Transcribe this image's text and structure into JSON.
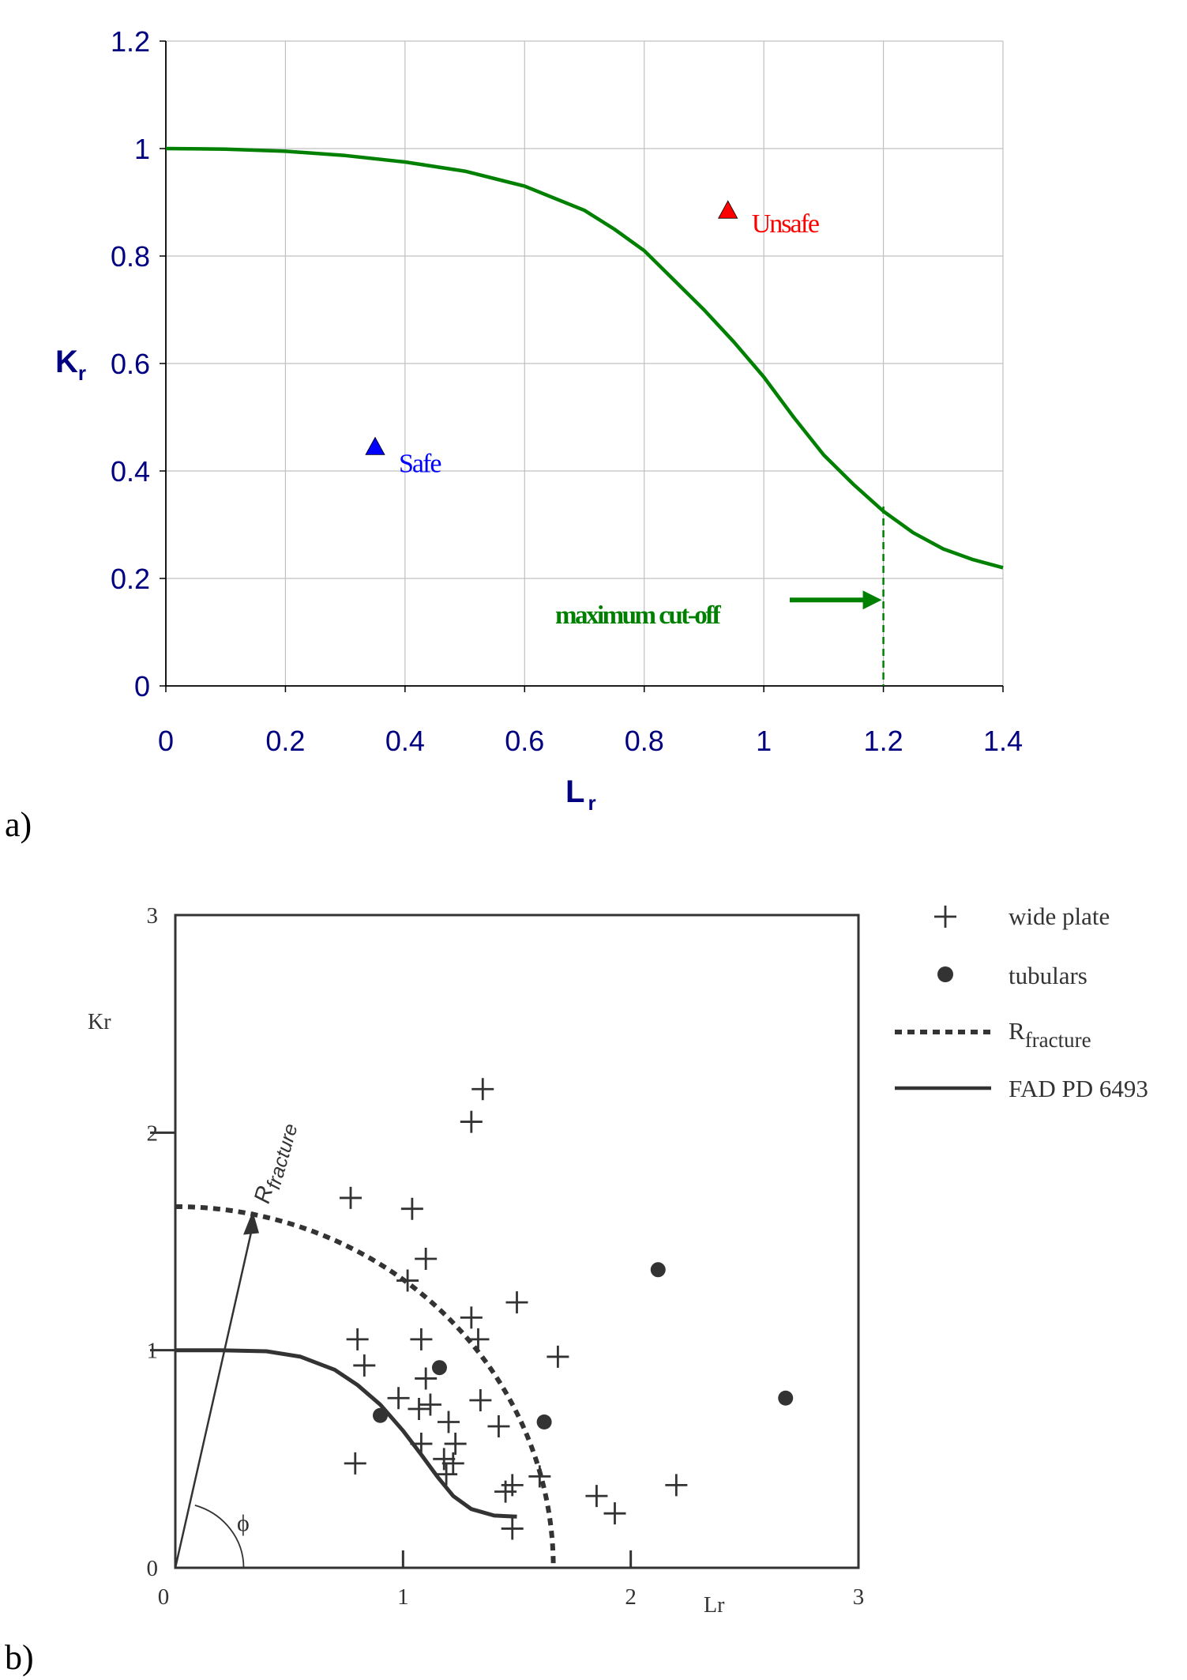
{
  "panels": {
    "a_label": "a)",
    "b_label": "b)"
  },
  "colors": {
    "a_axis_text": "#000080",
    "a_curve": "#008000",
    "a_grid": "#c0c0c0",
    "a_safe": "#0000ff",
    "a_unsafe": "#ff0000",
    "b_ink": "#333333"
  },
  "chart_data": [
    {
      "type": "line",
      "panel": "a",
      "xlabel": "Lr",
      "xlabel_main": "L",
      "xlabel_sub": "r",
      "ylabel": "Kr",
      "ylabel_main": "K",
      "ylabel_sub": "r",
      "xlim": [
        0,
        1.4
      ],
      "ylim": [
        0,
        1.2
      ],
      "xticks": [
        0,
        0.2,
        0.4,
        0.6,
        0.8,
        1,
        1.2,
        1.4
      ],
      "xtick_labels": [
        "0",
        "0.2",
        "0.4",
        "0.6",
        "0.8",
        "1",
        "1.2",
        "1.4"
      ],
      "yticks": [
        0,
        0.2,
        0.4,
        0.6,
        0.8,
        1,
        1.2
      ],
      "ytick_labels": [
        "0",
        "0.2",
        "0.4",
        "0.6",
        "0.8",
        "1",
        "1.2"
      ],
      "grid": true,
      "series": [
        {
          "x": [
            0,
            0.1,
            0.2,
            0.3,
            0.4,
            0.5,
            0.6,
            0.7,
            0.75,
            0.8,
            0.85,
            0.9,
            0.95,
            1.0,
            1.05,
            1.1,
            1.15,
            1.2,
            1.25,
            1.3,
            1.35,
            1.4
          ],
          "y": [
            1.0,
            0.999,
            0.995,
            0.987,
            0.975,
            0.958,
            0.93,
            0.885,
            0.85,
            0.81,
            0.755,
            0.7,
            0.64,
            0.575,
            0.5,
            0.43,
            0.375,
            0.325,
            0.285,
            0.255,
            0.235,
            0.22
          ]
        }
      ],
      "points": [
        {
          "x": 0.35,
          "y": 0.445,
          "label": "Safe",
          "color": "#0000ff",
          "marker": "triangle"
        },
        {
          "x": 0.94,
          "y": 0.885,
          "label": "Unsafe",
          "color": "#ff0000",
          "marker": "triangle"
        }
      ],
      "cutoff": {
        "x": 1.2,
        "y": 0.325,
        "arrow_y": 0.16,
        "label": "maximum cut-off"
      }
    },
    {
      "type": "scatter",
      "panel": "b",
      "xlabel": "Lr",
      "ylabel": "Kr",
      "xlim": [
        0,
        3
      ],
      "ylim": [
        0,
        3
      ],
      "xticks": [
        0,
        1,
        2,
        3
      ],
      "xtick_labels": [
        "0",
        "1",
        "2",
        "3"
      ],
      "yticks": [
        0,
        1,
        2,
        3
      ],
      "ytick_labels": [
        "0",
        "1",
        "2",
        "3"
      ],
      "legend": {
        "wide_plate": "wide plate",
        "tubulars": "tubulars",
        "rfracture_main": "R",
        "rfracture_sub": "fracture",
        "fad": "FAD PD 6493"
      },
      "rfracture_arrow_main": "R",
      "rfracture_arrow_sub": "fracture",
      "phi_label": "ϕ",
      "wide_plate": [
        [
          0.77,
          1.7
        ],
        [
          1.04,
          1.65
        ],
        [
          1.3,
          2.05
        ],
        [
          1.35,
          2.2
        ],
        [
          1.1,
          1.42
        ],
        [
          1.02,
          1.32
        ],
        [
          0.8,
          1.05
        ],
        [
          0.83,
          0.93
        ],
        [
          1.08,
          1.05
        ],
        [
          1.3,
          1.15
        ],
        [
          1.33,
          1.05
        ],
        [
          1.5,
          1.22
        ],
        [
          1.68,
          0.97
        ],
        [
          0.98,
          0.78
        ],
        [
          1.1,
          0.87
        ],
        [
          1.12,
          0.75
        ],
        [
          1.07,
          0.73
        ],
        [
          1.34,
          0.77
        ],
        [
          1.2,
          0.67
        ],
        [
          1.42,
          0.65
        ],
        [
          1.08,
          0.57
        ],
        [
          1.23,
          0.57
        ],
        [
          1.18,
          0.5
        ],
        [
          1.19,
          0.43
        ],
        [
          1.22,
          0.48
        ],
        [
          1.45,
          0.35
        ],
        [
          1.48,
          0.38
        ],
        [
          1.6,
          0.42
        ],
        [
          1.48,
          0.18
        ],
        [
          0.79,
          0.48
        ],
        [
          1.85,
          0.33
        ],
        [
          1.93,
          0.25
        ],
        [
          2.2,
          0.38
        ]
      ],
      "tubulars": [
        [
          0.9,
          0.7
        ],
        [
          1.16,
          0.92
        ],
        [
          1.62,
          0.67
        ],
        [
          2.12,
          1.37
        ],
        [
          2.68,
          0.78
        ]
      ],
      "fad_curve": [
        [
          0,
          1.0
        ],
        [
          0.2,
          1.0
        ],
        [
          0.4,
          0.995
        ],
        [
          0.55,
          0.97
        ],
        [
          0.7,
          0.91
        ],
        [
          0.8,
          0.84
        ],
        [
          0.9,
          0.75
        ],
        [
          1.0,
          0.63
        ],
        [
          1.08,
          0.52
        ],
        [
          1.15,
          0.42
        ],
        [
          1.22,
          0.33
        ],
        [
          1.3,
          0.27
        ],
        [
          1.4,
          0.24
        ],
        [
          1.5,
          0.235
        ]
      ],
      "rfracture_radius": 1.66,
      "rfracture_arrow": {
        "x": 0.34,
        "y": 1.64
      }
    }
  ]
}
